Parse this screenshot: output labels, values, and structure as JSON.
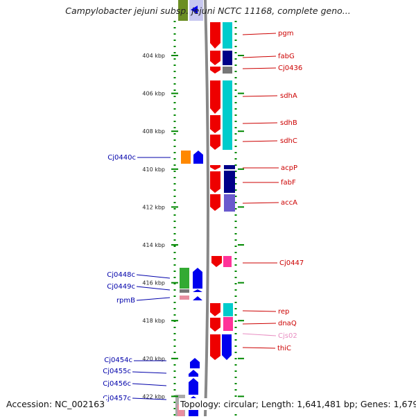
{
  "title": "Campylobacter jejuni subsp. jejuni NCTC 11168, complete geno...",
  "footer": {
    "accession": "Accession: NC_002163",
    "topology": "Topology: circular; Length: 1,641,481 bp; Genes: 1,679"
  },
  "ruler": {
    "unit": "kbp",
    "ticks": [
      {
        "label": "404 kbp",
        "kbp": 404
      },
      {
        "label": "406 kbp",
        "kbp": 406
      },
      {
        "label": "408 kbp",
        "kbp": 408
      },
      {
        "label": "410 kbp",
        "kbp": 410
      },
      {
        "label": "412 kbp",
        "kbp": 412
      },
      {
        "label": "414 kbp",
        "kbp": 414
      },
      {
        "label": "416 kbp",
        "kbp": 416
      },
      {
        "label": "418 kbp",
        "kbp": 418
      },
      {
        "label": "420 kbp",
        "kbp": 420
      },
      {
        "label": "422 kbp",
        "kbp": 422
      }
    ]
  },
  "gene_labels": {
    "forward": [
      {
        "label": "pgm",
        "color": "#cc0000"
      },
      {
        "label": "fabG",
        "color": "#cc0000"
      },
      {
        "label": "Cj0436",
        "color": "#cc0000"
      },
      {
        "label": "sdhA",
        "color": "#cc0000"
      },
      {
        "label": "sdhB",
        "color": "#cc0000"
      },
      {
        "label": "sdhC",
        "color": "#cc0000"
      },
      {
        "label": "acpP",
        "color": "#cc0000"
      },
      {
        "label": "fabF",
        "color": "#cc0000"
      },
      {
        "label": "accA",
        "color": "#cc0000"
      },
      {
        "label": "Cj0447",
        "color": "#cc0000"
      },
      {
        "label": "rep",
        "color": "#cc0000"
      },
      {
        "label": "dnaQ",
        "color": "#cc0000"
      },
      {
        "label": "Cjs02",
        "color": "#e88ec2"
      },
      {
        "label": "thiC",
        "color": "#cc0000"
      }
    ],
    "reverse": [
      {
        "label": "Cj0440c",
        "color": "#0000aa"
      },
      {
        "label": "Cj0448c",
        "color": "#0000aa"
      },
      {
        "label": "Cj0449c",
        "color": "#0000aa"
      },
      {
        "label": "rpmB",
        "color": "#0000aa"
      },
      {
        "label": "Cj0454c",
        "color": "#0000aa"
      },
      {
        "label": "Cj0455c",
        "color": "#0000aa"
      },
      {
        "label": "Cj0456c",
        "color": "#0000aa"
      },
      {
        "label": "Cj0457c",
        "color": "#0000aa"
      }
    ]
  },
  "colors": {
    "forward_gene": "#ee0000",
    "reverse_gene": "#0000ee",
    "forward_label": "#cc0000",
    "reverse_label": "#0000aa",
    "rna": "#e88ec2",
    "backbone": "#888888",
    "ruler_dots": "#008800",
    "cog_cyan": "#00cccc",
    "cog_navy": "#000088",
    "cog_slate": "#6a5acd",
    "cog_pink": "#ff3399",
    "cog_orange": "#ff8800",
    "cog_green": "#33aa33",
    "cog_gray": "#777777"
  }
}
